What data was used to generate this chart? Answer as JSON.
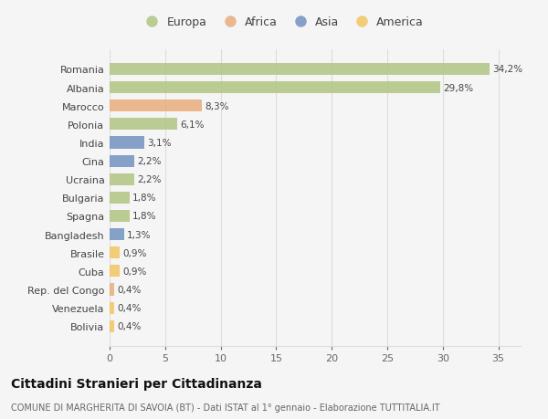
{
  "countries": [
    "Romania",
    "Albania",
    "Marocco",
    "Polonia",
    "India",
    "Cina",
    "Ucraina",
    "Bulgaria",
    "Spagna",
    "Bangladesh",
    "Brasile",
    "Cuba",
    "Rep. del Congo",
    "Venezuela",
    "Bolivia"
  ],
  "values": [
    34.2,
    29.8,
    8.3,
    6.1,
    3.1,
    2.2,
    2.2,
    1.8,
    1.8,
    1.3,
    0.9,
    0.9,
    0.4,
    0.4,
    0.4
  ],
  "labels": [
    "34,2%",
    "29,8%",
    "8,3%",
    "6,1%",
    "3,1%",
    "2,2%",
    "2,2%",
    "1,8%",
    "1,8%",
    "1,3%",
    "0,9%",
    "0,9%",
    "0,4%",
    "0,4%",
    "0,4%"
  ],
  "continents": [
    "Europa",
    "Europa",
    "Africa",
    "Europa",
    "Asia",
    "Asia",
    "Europa",
    "Europa",
    "Europa",
    "Asia",
    "America",
    "America",
    "Africa",
    "America",
    "America"
  ],
  "colors": {
    "Europa": "#adc47e",
    "Africa": "#e8aa78",
    "Asia": "#6e8fbf",
    "America": "#f2c45a"
  },
  "title": "Cittadini Stranieri per Cittadinanza",
  "subtitle": "COMUNE DI MARGHERITA DI SAVOIA (BT) - Dati ISTAT al 1° gennaio - Elaborazione TUTTITALIA.IT",
  "xlim": [
    0,
    37
  ],
  "xticks": [
    0,
    5,
    10,
    15,
    20,
    25,
    30,
    35
  ],
  "background_color": "#f5f5f5",
  "grid_color": "#dddddd",
  "bar_alpha": 0.82
}
